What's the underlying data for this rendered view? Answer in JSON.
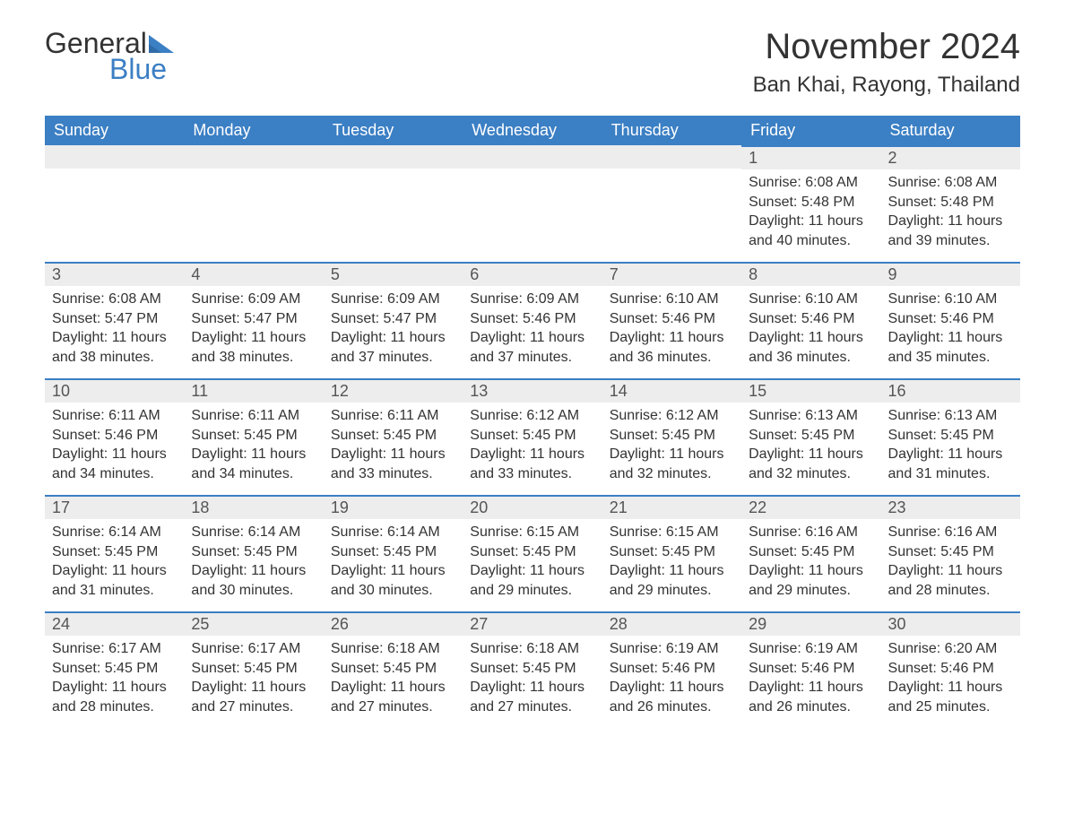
{
  "logo": {
    "text_general": "General",
    "text_blue": "Blue",
    "icon_color": "#3b7fc4"
  },
  "title": "November 2024",
  "location": "Ban Khai, Rayong, Thailand",
  "colors": {
    "header_bg": "#3b7fc4",
    "header_text": "#ffffff",
    "day_row_bg": "#ededed",
    "day_row_border": "#3b7fc4",
    "text": "#333333"
  },
  "day_headers": [
    "Sunday",
    "Monday",
    "Tuesday",
    "Wednesday",
    "Thursday",
    "Friday",
    "Saturday"
  ],
  "weeks": [
    [
      null,
      null,
      null,
      null,
      null,
      {
        "n": "1",
        "sr": "Sunrise: 6:08 AM",
        "ss": "Sunset: 5:48 PM",
        "dl": "Daylight: 11 hours and 40 minutes."
      },
      {
        "n": "2",
        "sr": "Sunrise: 6:08 AM",
        "ss": "Sunset: 5:48 PM",
        "dl": "Daylight: 11 hours and 39 minutes."
      }
    ],
    [
      {
        "n": "3",
        "sr": "Sunrise: 6:08 AM",
        "ss": "Sunset: 5:47 PM",
        "dl": "Daylight: 11 hours and 38 minutes."
      },
      {
        "n": "4",
        "sr": "Sunrise: 6:09 AM",
        "ss": "Sunset: 5:47 PM",
        "dl": "Daylight: 11 hours and 38 minutes."
      },
      {
        "n": "5",
        "sr": "Sunrise: 6:09 AM",
        "ss": "Sunset: 5:47 PM",
        "dl": "Daylight: 11 hours and 37 minutes."
      },
      {
        "n": "6",
        "sr": "Sunrise: 6:09 AM",
        "ss": "Sunset: 5:46 PM",
        "dl": "Daylight: 11 hours and 37 minutes."
      },
      {
        "n": "7",
        "sr": "Sunrise: 6:10 AM",
        "ss": "Sunset: 5:46 PM",
        "dl": "Daylight: 11 hours and 36 minutes."
      },
      {
        "n": "8",
        "sr": "Sunrise: 6:10 AM",
        "ss": "Sunset: 5:46 PM",
        "dl": "Daylight: 11 hours and 36 minutes."
      },
      {
        "n": "9",
        "sr": "Sunrise: 6:10 AM",
        "ss": "Sunset: 5:46 PM",
        "dl": "Daylight: 11 hours and 35 minutes."
      }
    ],
    [
      {
        "n": "10",
        "sr": "Sunrise: 6:11 AM",
        "ss": "Sunset: 5:46 PM",
        "dl": "Daylight: 11 hours and 34 minutes."
      },
      {
        "n": "11",
        "sr": "Sunrise: 6:11 AM",
        "ss": "Sunset: 5:45 PM",
        "dl": "Daylight: 11 hours and 34 minutes."
      },
      {
        "n": "12",
        "sr": "Sunrise: 6:11 AM",
        "ss": "Sunset: 5:45 PM",
        "dl": "Daylight: 11 hours and 33 minutes."
      },
      {
        "n": "13",
        "sr": "Sunrise: 6:12 AM",
        "ss": "Sunset: 5:45 PM",
        "dl": "Daylight: 11 hours and 33 minutes."
      },
      {
        "n": "14",
        "sr": "Sunrise: 6:12 AM",
        "ss": "Sunset: 5:45 PM",
        "dl": "Daylight: 11 hours and 32 minutes."
      },
      {
        "n": "15",
        "sr": "Sunrise: 6:13 AM",
        "ss": "Sunset: 5:45 PM",
        "dl": "Daylight: 11 hours and 32 minutes."
      },
      {
        "n": "16",
        "sr": "Sunrise: 6:13 AM",
        "ss": "Sunset: 5:45 PM",
        "dl": "Daylight: 11 hours and 31 minutes."
      }
    ],
    [
      {
        "n": "17",
        "sr": "Sunrise: 6:14 AM",
        "ss": "Sunset: 5:45 PM",
        "dl": "Daylight: 11 hours and 31 minutes."
      },
      {
        "n": "18",
        "sr": "Sunrise: 6:14 AM",
        "ss": "Sunset: 5:45 PM",
        "dl": "Daylight: 11 hours and 30 minutes."
      },
      {
        "n": "19",
        "sr": "Sunrise: 6:14 AM",
        "ss": "Sunset: 5:45 PM",
        "dl": "Daylight: 11 hours and 30 minutes."
      },
      {
        "n": "20",
        "sr": "Sunrise: 6:15 AM",
        "ss": "Sunset: 5:45 PM",
        "dl": "Daylight: 11 hours and 29 minutes."
      },
      {
        "n": "21",
        "sr": "Sunrise: 6:15 AM",
        "ss": "Sunset: 5:45 PM",
        "dl": "Daylight: 11 hours and 29 minutes."
      },
      {
        "n": "22",
        "sr": "Sunrise: 6:16 AM",
        "ss": "Sunset: 5:45 PM",
        "dl": "Daylight: 11 hours and 29 minutes."
      },
      {
        "n": "23",
        "sr": "Sunrise: 6:16 AM",
        "ss": "Sunset: 5:45 PM",
        "dl": "Daylight: 11 hours and 28 minutes."
      }
    ],
    [
      {
        "n": "24",
        "sr": "Sunrise: 6:17 AM",
        "ss": "Sunset: 5:45 PM",
        "dl": "Daylight: 11 hours and 28 minutes."
      },
      {
        "n": "25",
        "sr": "Sunrise: 6:17 AM",
        "ss": "Sunset: 5:45 PM",
        "dl": "Daylight: 11 hours and 27 minutes."
      },
      {
        "n": "26",
        "sr": "Sunrise: 6:18 AM",
        "ss": "Sunset: 5:45 PM",
        "dl": "Daylight: 11 hours and 27 minutes."
      },
      {
        "n": "27",
        "sr": "Sunrise: 6:18 AM",
        "ss": "Sunset: 5:45 PM",
        "dl": "Daylight: 11 hours and 27 minutes."
      },
      {
        "n": "28",
        "sr": "Sunrise: 6:19 AM",
        "ss": "Sunset: 5:46 PM",
        "dl": "Daylight: 11 hours and 26 minutes."
      },
      {
        "n": "29",
        "sr": "Sunrise: 6:19 AM",
        "ss": "Sunset: 5:46 PM",
        "dl": "Daylight: 11 hours and 26 minutes."
      },
      {
        "n": "30",
        "sr": "Sunrise: 6:20 AM",
        "ss": "Sunset: 5:46 PM",
        "dl": "Daylight: 11 hours and 25 minutes."
      }
    ]
  ]
}
